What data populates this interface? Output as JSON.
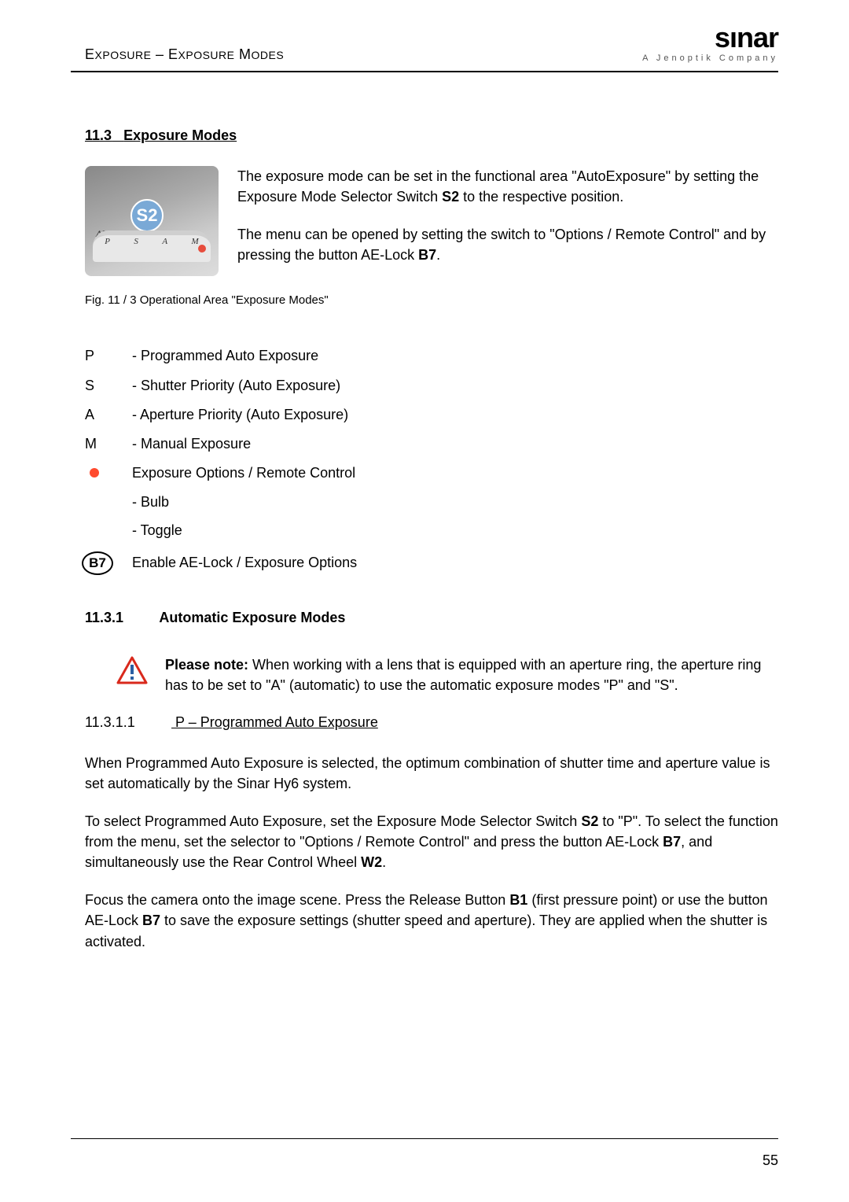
{
  "header": {
    "breadcrumb_html": "E<span style='font-size:14px'>XPOSURE</span> – E<span style='font-size:14px'>XPOSURE</span> M<span style='font-size:14px'>ODES</span>",
    "logo": "sınar",
    "tagline": "A Jenoptik Company"
  },
  "section": {
    "number": "11.3",
    "title": "Exposure Modes"
  },
  "intro": {
    "p1_html": "The exposure mode can be set in the functional area \"AutoExposure\" by setting the Exposure Mode Selector Switch <b>S2</b> to the respective position.",
    "p2_html": "The menu can be opened by setting the switch to \"Options / Remote Control\" and by pressing the button AE-Lock <b>B7</b>."
  },
  "figure": {
    "badge": "S2",
    "dial_labels": [
      "P",
      "S",
      "A",
      "M"
    ],
    "ae_label": "AE",
    "caption": "Fig. 11 / 3 Operational Area \"Exposure Modes\""
  },
  "modes": [
    {
      "key": "P",
      "desc": "- Programmed Auto Exposure"
    },
    {
      "key": "S",
      "desc": "- Shutter Priority (Auto Exposure)"
    },
    {
      "key": "A",
      "desc": "- Aperture Priority (Auto Exposure)"
    },
    {
      "key": "M",
      "desc": "- Manual Exposure"
    }
  ],
  "options_row": {
    "desc": "Exposure Options / Remote Control",
    "subs": [
      "- Bulb",
      "- Toggle"
    ]
  },
  "b7_row": {
    "badge": "B7",
    "desc": "Enable AE-Lock / Exposure Options"
  },
  "subsection": {
    "number": "11.3.1",
    "title": "Automatic Exposure Modes"
  },
  "note_html": "<b>Please note:</b> When working with a lens that is equipped with an aperture ring, the aperture ring has to be set to \"A\" (automatic) to use the automatic exposure modes \"P\" and \"S\".",
  "subsub": {
    "number": "11.3.1.1",
    "title": "P – Programmed Auto Exposure"
  },
  "paragraphs": {
    "p1": "When Programmed Auto Exposure is selected, the optimum combination of shutter time and aperture value is set automatically by the Sinar Hy6 system.",
    "p2_html": "To select Programmed Auto Exposure, set the Exposure Mode Selector Switch <b>S2</b> to \"P\". To select the function from the menu, set the selector to \"Options / Remote Control\" and press the button AE-Lock <b>B7</b>, and simultaneously use the Rear Control Wheel <b>W2</b>.",
    "p3_html": "Focus the camera onto the image scene. Press the Release Button <b>B1</b> (first pressure point) or use the button AE-Lock <b>B7</b> to save the exposure settings (shutter speed and aperture). They are applied when the shutter is activated."
  },
  "page_number": "55",
  "colors": {
    "red_dot": "#ff4a2e",
    "badge_bg": "#7aa9d6",
    "warn_border": "#d9291c",
    "warn_fill": "#2a5fa3"
  }
}
